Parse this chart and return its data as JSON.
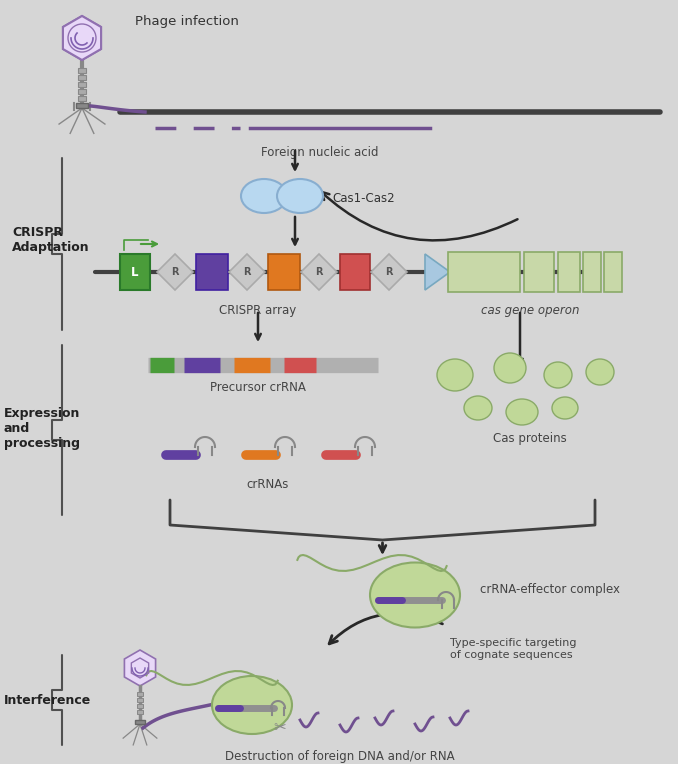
{
  "bg_color": "#d6d6d6",
  "colors": {
    "bg": "#d6d6d6",
    "green_box": "#4a9c3a",
    "purple_box": "#6040a0",
    "orange_box": "#e07820",
    "salmon_box": "#d05050",
    "diamond_fill": "#c8c8c8",
    "diamond_stroke": "#aaaaaa",
    "cas_light_green": "#c8d8a8",
    "cas_blue": "#a8c8e0",
    "line_dark": "#404040",
    "arrow_dark": "#282828",
    "phage_purple": "#7050a0",
    "phage_inner": "#9070c0",
    "phage_line": "#888888",
    "purple_dna": "#705090",
    "bracket": "#505050",
    "blob_green": "#c0d898",
    "blob_edge": "#8aaa68"
  },
  "labels": {
    "phage_infection": "Phage infection",
    "foreign_nucleic_acid": "Foreign nucleic acid",
    "cas1_cas2": "Cas1-Cas2",
    "crispr_array": "CRISPR array",
    "cas_gene_operon": "cas gene operon",
    "precursor_crRNA": "Precursor crRNA",
    "crRNAs": "crRNAs",
    "cas_proteins": "Cas proteins",
    "crRNA_effector": "crRNA-effector complex",
    "type_specific": "Type-specific targeting\nof cognate sequences",
    "destruction": "Destruction of foreign DNA and/or RNA",
    "adaptation": "CRISPR\nAdaptation",
    "expression": "Expression\nand\nprocessing",
    "interference": "Interference"
  }
}
